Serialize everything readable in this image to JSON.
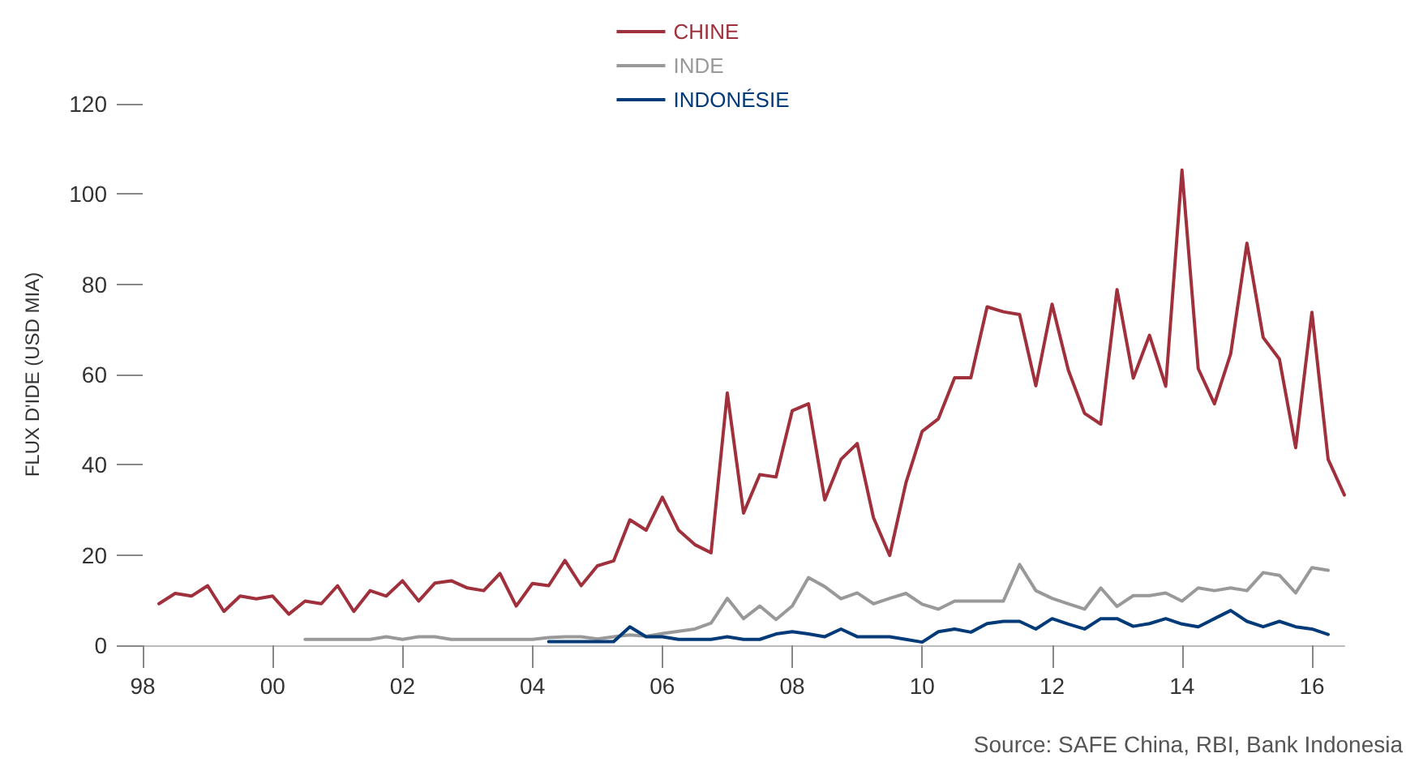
{
  "chart_data": {
    "type": "line",
    "ylabel": "FLUX D'IDE (USD MIA)",
    "xlim": [
      1998,
      2016.5
    ],
    "xticks": [
      {
        "value": 1998,
        "label": "98"
      },
      {
        "value": 2000,
        "label": "00"
      },
      {
        "value": 2002,
        "label": "02"
      },
      {
        "value": 2004,
        "label": "04"
      },
      {
        "value": 2006,
        "label": "06"
      },
      {
        "value": 2008,
        "label": "08"
      },
      {
        "value": 2010,
        "label": "10"
      },
      {
        "value": 2012,
        "label": "12"
      },
      {
        "value": 2014,
        "label": "14"
      },
      {
        "value": 2016,
        "label": "16"
      }
    ],
    "ylim": [
      0,
      120
    ],
    "yticks": [
      0,
      20,
      40,
      60,
      80,
      100,
      120
    ],
    "grid": false,
    "legend": "top",
    "marker": "none",
    "line_style": "solid",
    "annotations": [
      "Source: SAFE China, RBI, Bank Indonesia"
    ],
    "series": [
      {
        "name": "CHINE",
        "color": "#a0313c",
        "x": [
          1998.25,
          1998.5,
          1998.75,
          1999,
          1999.25,
          1999.5,
          1999.75,
          2000,
          2000.25,
          2000.5,
          2000.75,
          2001,
          2001.25,
          2001.5,
          2001.75,
          2002,
          2002.25,
          2002.5,
          2002.75,
          2003,
          2003.25,
          2003.5,
          2003.75,
          2004,
          2004.25,
          2004.5,
          2004.75,
          2005,
          2005.25,
          2005.5,
          2005.75,
          2006,
          2006.25,
          2006.5,
          2006.75,
          2007,
          2007.25,
          2007.5,
          2007.75,
          2008,
          2008.25,
          2008.5,
          2008.75,
          2009,
          2009.25,
          2009.5,
          2009.75,
          2010,
          2010.25,
          2010.5,
          2010.75,
          2011,
          2011.25,
          2011.5,
          2011.75,
          2012,
          2012.25,
          2012.5,
          2012.75,
          2013,
          2013.25,
          2013.5,
          2013.75,
          2014,
          2014.25,
          2014.5,
          2014.75,
          2015,
          2015.25,
          2015.5,
          2015.75,
          2016,
          2016.25,
          2016.5
        ],
        "values": [
          9.2,
          11.5,
          10.9,
          13.2,
          7.5,
          10.9,
          10.3,
          10.9,
          6.9,
          9.8,
          9.2,
          13.2,
          7.5,
          12.1,
          10.9,
          14.3,
          9.8,
          13.8,
          14.3,
          12.7,
          12.1,
          15.9,
          8.7,
          13.7,
          13.2,
          18.8,
          13.2,
          17.6,
          18.7,
          27.8,
          25.5,
          32.8,
          25.5,
          22.3,
          20.5,
          55.9,
          29.3,
          37.8,
          37.3,
          52.0,
          53.5,
          32.2,
          41.2,
          44.7,
          28.3,
          19.9,
          36.0,
          47.4,
          50.2,
          59.3,
          59.3,
          75.0,
          73.9,
          73.3,
          57.5,
          75.6,
          61.0,
          51.4,
          49.0,
          78.8,
          59.2,
          68.7,
          57.4,
          105.3,
          61.3,
          53.5,
          64.6,
          89.1,
          68.2,
          63.4,
          43.8,
          73.8,
          41.2,
          33.3
        ]
      },
      {
        "name": "INDE",
        "color": "#999999",
        "x": [
          2000.5,
          2000.75,
          2001,
          2001.25,
          2001.5,
          2001.75,
          2002,
          2002.25,
          2002.5,
          2002.75,
          2003,
          2003.25,
          2003.5,
          2003.75,
          2004,
          2004.25,
          2004.5,
          2004.75,
          2005,
          2005.25,
          2005.5,
          2005.75,
          2006,
          2006.25,
          2006.5,
          2006.75,
          2007,
          2007.25,
          2007.5,
          2007.75,
          2008,
          2008.25,
          2008.5,
          2008.75,
          2009,
          2009.25,
          2009.5,
          2009.75,
          2010,
          2010.25,
          2010.5,
          2010.75,
          2011,
          2011.25,
          2011.5,
          2011.75,
          2012,
          2012.25,
          2012.5,
          2012.75,
          2013,
          2013.25,
          2013.5,
          2013.75,
          2014,
          2014.25,
          2014.5,
          2014.75,
          2015,
          2015.25,
          2015.5,
          2015.75,
          2016,
          2016.25
        ],
        "values": [
          1.3,
          1.3,
          1.3,
          1.3,
          1.3,
          1.9,
          1.3,
          1.9,
          1.9,
          1.3,
          1.3,
          1.3,
          1.3,
          1.3,
          1.3,
          1.7,
          1.9,
          1.9,
          1.4,
          1.9,
          2.3,
          2.0,
          2.6,
          3.1,
          3.6,
          4.9,
          10.4,
          5.9,
          8.7,
          5.7,
          8.7,
          15.0,
          13.0,
          10.3,
          11.6,
          9.2,
          10.4,
          11.5,
          9.1,
          8.0,
          9.8,
          9.8,
          9.8,
          9.8,
          17.9,
          12.1,
          10.4,
          9.2,
          8.0,
          12.7,
          8.6,
          11.0,
          11.0,
          11.6,
          9.8,
          12.7,
          12.1,
          12.7,
          12.1,
          16.1,
          15.5,
          11.6,
          17.2,
          16.6
        ]
      },
      {
        "name": "INDONÉSIE",
        "color": "#003a78",
        "x": [
          2004.25,
          2004.5,
          2004.75,
          2005,
          2005.25,
          2005.5,
          2005.75,
          2006,
          2006.25,
          2006.5,
          2006.75,
          2007,
          2007.25,
          2007.5,
          2007.75,
          2008,
          2008.25,
          2008.5,
          2008.75,
          2009,
          2009.25,
          2009.5,
          2009.75,
          2010,
          2010.25,
          2010.5,
          2010.75,
          2011,
          2011.25,
          2011.5,
          2011.75,
          2012,
          2012.25,
          2012.5,
          2012.75,
          2013,
          2013.25,
          2013.5,
          2013.75,
          2014,
          2014.25,
          2014.5,
          2014.75,
          2015,
          2015.25,
          2015.5,
          2015.75,
          2016,
          2016.25
        ],
        "values": [
          0.8,
          0.8,
          0.8,
          0.8,
          0.8,
          4.1,
          1.9,
          1.9,
          1.3,
          1.3,
          1.3,
          1.9,
          1.3,
          1.3,
          2.5,
          3.0,
          2.5,
          1.9,
          3.6,
          1.9,
          1.9,
          1.9,
          1.3,
          0.7,
          3.0,
          3.6,
          2.9,
          4.8,
          5.3,
          5.3,
          3.6,
          5.9,
          4.7,
          3.6,
          5.9,
          5.9,
          4.2,
          4.8,
          5.9,
          4.7,
          4.1,
          5.9,
          7.7,
          5.3,
          4.1,
          5.3,
          4.1,
          3.6,
          2.4
        ]
      }
    ]
  }
}
